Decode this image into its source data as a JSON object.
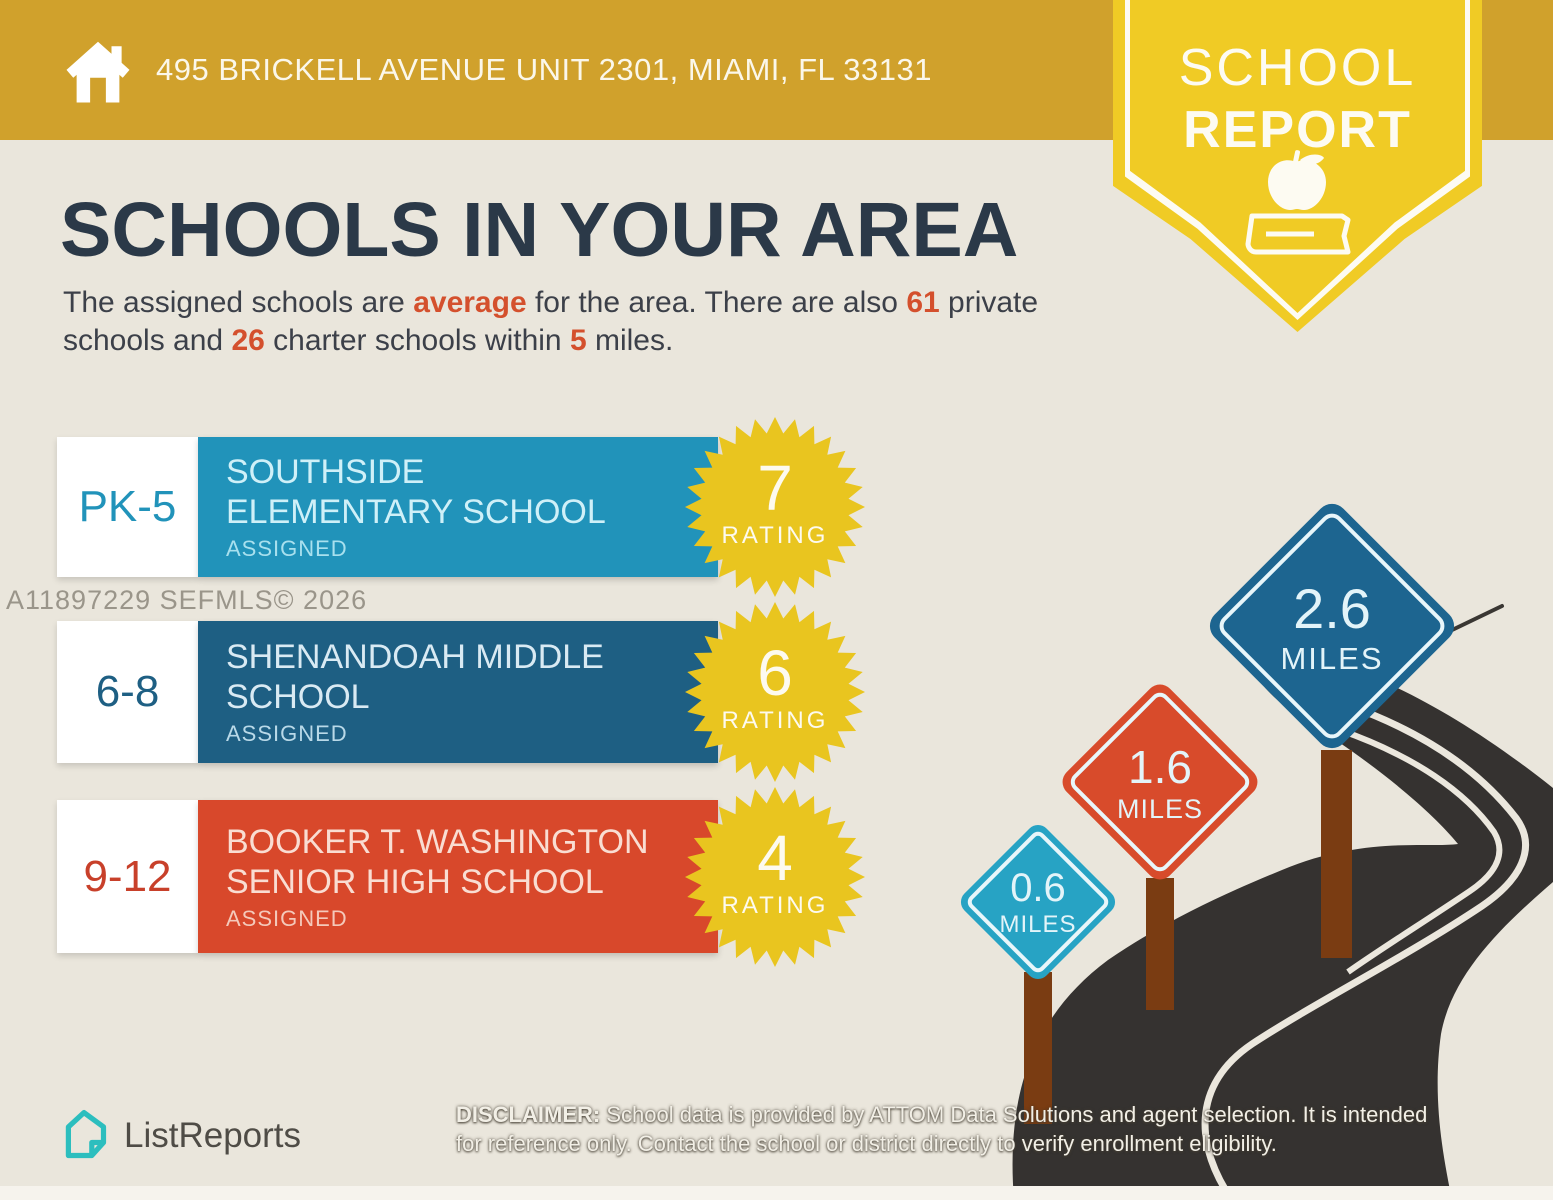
{
  "header": {
    "address": "495 BRICKELL AVENUE UNIT 2301, MIAMI, FL 33131"
  },
  "ribbon": {
    "line1": "SCHOOL",
    "line2": "REPORT"
  },
  "title": "SCHOOLS IN YOUR AREA",
  "intro": {
    "t1": "The assigned schools are ",
    "hl1": "average",
    "t2": " for the area. There are also ",
    "hl2": "61",
    "t3": " private schools and ",
    "hl3": "26",
    "t4": " charter schools within ",
    "hl4": "5",
    "t5": " miles."
  },
  "watermark": "A11897229  SEFMLS© 2026",
  "schools": [
    {
      "grades": "PK-5",
      "name_line1": "SOUTHSIDE",
      "name_line2": "ELEMENTARY SCHOOL",
      "status": "ASSIGNED",
      "rating": "7",
      "rating_label": "RATING",
      "color": "#2193BA"
    },
    {
      "grades": "6-8",
      "name_line1": "SHENANDOAH MIDDLE",
      "name_line2": "SCHOOL",
      "status": "ASSIGNED",
      "rating": "6",
      "rating_label": "RATING",
      "color": "#1E5F83"
    },
    {
      "grades": "9-12",
      "name_line1": "BOOKER T. WASHINGTON",
      "name_line2": "SENIOR HIGH SCHOOL",
      "status": "ASSIGNED",
      "rating": "4",
      "rating_label": "RATING",
      "color": "#D8482B"
    }
  ],
  "signs": [
    {
      "value": "0.6",
      "unit": "MILES",
      "color": "#27A3C4"
    },
    {
      "value": "1.6",
      "unit": "MILES",
      "color": "#D84B2B"
    },
    {
      "value": "2.6",
      "unit": "MILES",
      "color": "#1D6590"
    }
  ],
  "footer": {
    "brand": "ListReports",
    "disclaimer_label": "DISCLAIMER:",
    "disclaimer_rest1": " School data is provided by ATTOM Data Solutions and agent selection. It is intended",
    "disclaimer_line2": "for reference only. Contact the school or district directly to verify enrollment eligibility."
  },
  "colors": {
    "header_gold": "#D0A12C",
    "ribbon_yellow": "#F0CB25",
    "starburst_yellow": "#E9C51F",
    "accent_orange": "#D4502D",
    "title_navy": "#2B3948",
    "road_dark": "#353230",
    "post_brown": "#7A3C12",
    "background": "#EAE6DC"
  }
}
